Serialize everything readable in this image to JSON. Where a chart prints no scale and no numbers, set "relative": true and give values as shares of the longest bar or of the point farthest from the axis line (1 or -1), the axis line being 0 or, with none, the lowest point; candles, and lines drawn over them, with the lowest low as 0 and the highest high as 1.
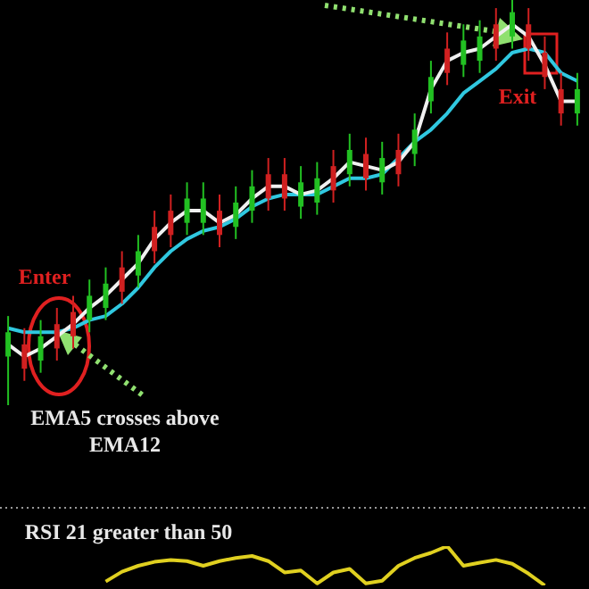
{
  "chart_data": [
    {
      "type": "candlestick",
      "relative": true,
      "grid": false,
      "legend": false,
      "tick_labels": false,
      "categories": [
        null,
        null,
        null,
        null,
        null,
        null,
        null,
        null,
        null,
        null,
        null,
        null,
        null,
        null,
        null,
        null,
        null,
        null,
        null,
        null,
        null,
        null,
        null,
        null,
        null,
        null,
        null,
        null,
        null,
        null,
        null,
        null,
        null,
        null,
        null,
        null
      ],
      "ohlc": [
        [
          0.12,
          0.22,
          0.0,
          0.18
        ],
        [
          0.15,
          0.19,
          0.06,
          0.09
        ],
        [
          0.11,
          0.21,
          0.08,
          0.17
        ],
        [
          0.2,
          0.24,
          0.11,
          0.14
        ],
        [
          0.23,
          0.27,
          0.14,
          0.17
        ],
        [
          0.21,
          0.31,
          0.18,
          0.27
        ],
        [
          0.24,
          0.34,
          0.21,
          0.3
        ],
        [
          0.34,
          0.38,
          0.25,
          0.28
        ],
        [
          0.32,
          0.42,
          0.29,
          0.38
        ],
        [
          0.44,
          0.48,
          0.35,
          0.38
        ],
        [
          0.48,
          0.52,
          0.39,
          0.42
        ],
        [
          0.45,
          0.55,
          0.42,
          0.51
        ],
        [
          0.45,
          0.55,
          0.42,
          0.51
        ],
        [
          0.48,
          0.52,
          0.39,
          0.42
        ],
        [
          0.44,
          0.54,
          0.41,
          0.5
        ],
        [
          0.48,
          0.58,
          0.45,
          0.54
        ],
        [
          0.57,
          0.61,
          0.48,
          0.51
        ],
        [
          0.57,
          0.61,
          0.48,
          0.51
        ],
        [
          0.49,
          0.59,
          0.46,
          0.55
        ],
        [
          0.5,
          0.6,
          0.47,
          0.56
        ],
        [
          0.59,
          0.63,
          0.5,
          0.53
        ],
        [
          0.57,
          0.67,
          0.54,
          0.63
        ],
        [
          0.62,
          0.66,
          0.53,
          0.56
        ],
        [
          0.55,
          0.65,
          0.52,
          0.61
        ],
        [
          0.63,
          0.67,
          0.54,
          0.57
        ],
        [
          0.62,
          0.72,
          0.59,
          0.68
        ],
        [
          0.75,
          0.85,
          0.72,
          0.81
        ],
        [
          0.88,
          0.92,
          0.79,
          0.82
        ],
        [
          0.84,
          0.94,
          0.81,
          0.9
        ],
        [
          0.85,
          0.95,
          0.82,
          0.91
        ],
        [
          0.94,
          0.98,
          0.85,
          0.88
        ],
        [
          0.91,
          1.0,
          0.88,
          0.97
        ],
        [
          0.94,
          0.98,
          0.85,
          0.88
        ],
        [
          0.87,
          0.91,
          0.78,
          0.81
        ],
        [
          0.78,
          0.82,
          0.69,
          0.72
        ],
        [
          0.72,
          0.82,
          0.69,
          0.78
        ]
      ],
      "colors": [
        "#22c022",
        "#d02020",
        "#22c022",
        "#d02020",
        "#d02020",
        "#22c022",
        "#22c022",
        "#d02020",
        "#22c022",
        "#d02020",
        "#d02020",
        "#22c022",
        "#22c022",
        "#d02020",
        "#22c022",
        "#22c022",
        "#d02020",
        "#d02020",
        "#22c022",
        "#22c022",
        "#d02020",
        "#22c022",
        "#d02020",
        "#22c022",
        "#d02020",
        "#22c022",
        "#22c022",
        "#d02020",
        "#22c022",
        "#22c022",
        "#d02020",
        "#22c022",
        "#d02020",
        "#d02020",
        "#d02020",
        "#22c022"
      ],
      "series": [
        {
          "type": "line",
          "color": "#f0f0f0",
          "values": [
            0.15,
            0.12,
            0.14,
            0.17,
            0.2,
            0.24,
            0.27,
            0.31,
            0.35,
            0.41,
            0.45,
            0.48,
            0.48,
            0.45,
            0.47,
            0.51,
            0.54,
            0.54,
            0.52,
            0.53,
            0.56,
            0.6,
            0.59,
            0.58,
            0.6,
            0.65,
            0.78,
            0.85,
            0.87,
            0.88,
            0.91,
            0.94,
            0.91,
            0.84,
            0.75,
            0.75
          ]
        },
        {
          "type": "line",
          "color": "#30c8e0",
          "values": [
            0.19,
            0.18,
            0.18,
            0.18,
            0.19,
            0.21,
            0.22,
            0.25,
            0.29,
            0.34,
            0.38,
            0.41,
            0.43,
            0.44,
            0.46,
            0.49,
            0.51,
            0.52,
            0.52,
            0.52,
            0.54,
            0.56,
            0.56,
            0.57,
            0.61,
            0.65,
            0.68,
            0.72,
            0.77,
            0.8,
            0.83,
            0.87,
            0.88,
            0.87,
            0.82,
            0.8
          ]
        }
      ],
      "annotations": [
        "Enter",
        "Exit",
        "EMA5 crosses above EMA12"
      ]
    },
    {
      "type": "line",
      "relative": true,
      "grid": false,
      "legend": false,
      "tick_labels": false,
      "categories": [
        null,
        null,
        null,
        null,
        null,
        null,
        null,
        null,
        null,
        null,
        null,
        null,
        null,
        null,
        null,
        null,
        null,
        null,
        null,
        null,
        null,
        null,
        null,
        null,
        null,
        null,
        null,
        null,
        null,
        null,
        null,
        null,
        null,
        null,
        null,
        null
      ],
      "series": [
        {
          "color": "#e0d020",
          "values": [
            null,
            null,
            null,
            null,
            null,
            null,
            0.1,
            0.35,
            0.5,
            0.6,
            0.65,
            0.62,
            0.5,
            0.62,
            0.7,
            0.75,
            0.62,
            0.33,
            0.38,
            0.05,
            0.33,
            0.42,
            0.05,
            0.12,
            0.5,
            0.7,
            0.83,
            1.0,
            0.5,
            0.58,
            0.65,
            0.55,
            0.3,
            0.0,
            null,
            null
          ]
        }
      ],
      "annotations": [
        "RSI 21 greater than 50"
      ]
    }
  ]
}
